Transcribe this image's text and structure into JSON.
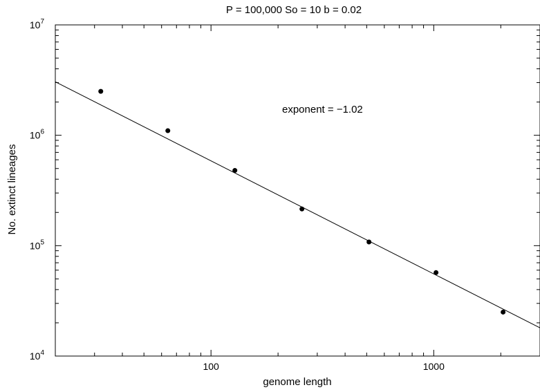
{
  "chart_data": {
    "type": "scatter",
    "title": "P = 100,000  So = 10  b = 0.02",
    "xlabel": "genome length",
    "ylabel": "No. extinct lineages",
    "xscale": "log",
    "yscale": "log",
    "xlim": [
      20,
      3000
    ],
    "ylim": [
      10000,
      10000000
    ],
    "x_ticks": [
      {
        "value": 100,
        "label": "100"
      },
      {
        "value": 1000,
        "label": "1000"
      }
    ],
    "y_ticks": [
      {
        "value": 10000,
        "base": "10",
        "exp": "4"
      },
      {
        "value": 100000,
        "base": "10",
        "exp": "5"
      },
      {
        "value": 1000000,
        "base": "10",
        "exp": "6"
      },
      {
        "value": 10000000,
        "base": "10",
        "exp": "7"
      }
    ],
    "points": [
      {
        "x": 32,
        "y": 2500000
      },
      {
        "x": 64,
        "y": 1100000
      },
      {
        "x": 128,
        "y": 480000
      },
      {
        "x": 256,
        "y": 215000
      },
      {
        "x": 512,
        "y": 108000
      },
      {
        "x": 1024,
        "y": 57000
      },
      {
        "x": 2048,
        "y": 25000
      }
    ],
    "fit_line": {
      "exponent": -1.02,
      "from": {
        "x": 20,
        "y": 3050000
      },
      "to": {
        "x": 3000,
        "y": 18000
      }
    },
    "annotation": "exponent = −1.02",
    "grid": false
  }
}
